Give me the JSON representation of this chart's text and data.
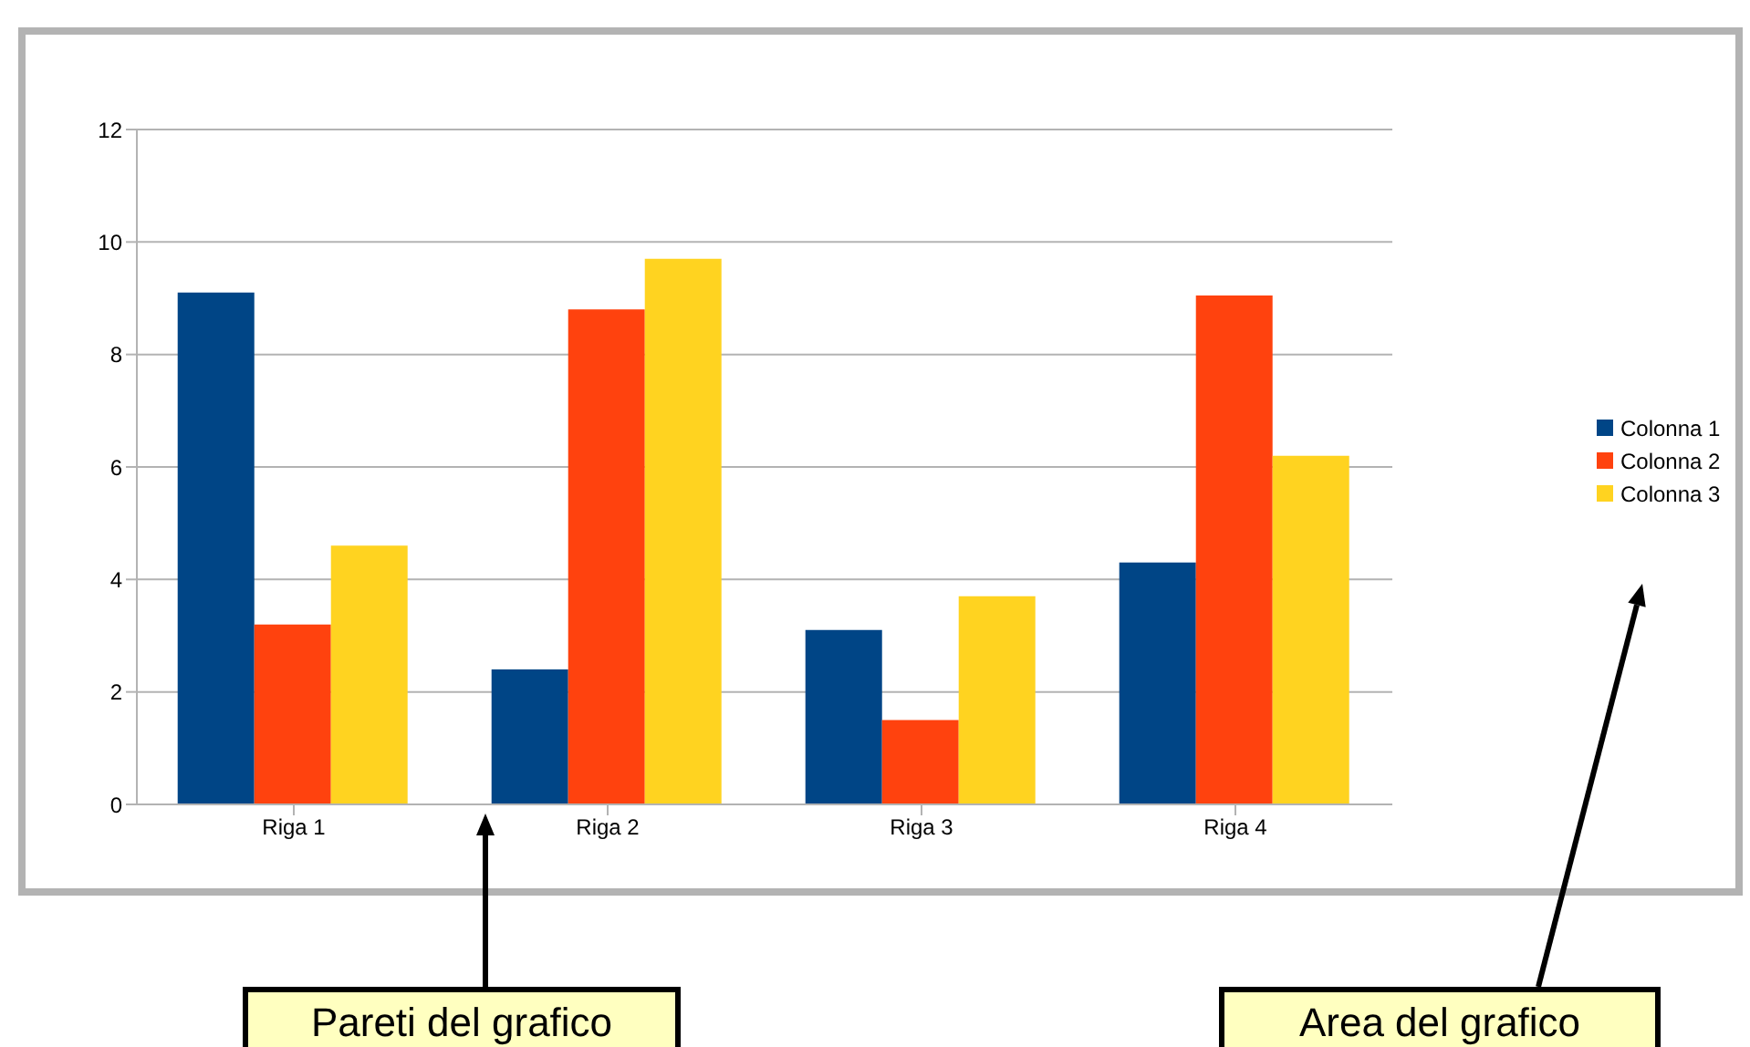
{
  "chart_data": {
    "type": "bar",
    "categories": [
      "Riga 1",
      "Riga 2",
      "Riga 3",
      "Riga 4"
    ],
    "series": [
      {
        "name": "Colonna 1",
        "color": "#004586",
        "values": [
          9.1,
          2.4,
          3.1,
          4.3
        ]
      },
      {
        "name": "Colonna 2",
        "color": "#ff420e",
        "values": [
          3.2,
          8.8,
          1.5,
          9.05
        ]
      },
      {
        "name": "Colonna 3",
        "color": "#ffd320",
        "values": [
          4.6,
          9.7,
          3.7,
          6.2
        ]
      }
    ],
    "ylim": [
      0,
      12
    ],
    "yticks": [
      0,
      2,
      4,
      6,
      8,
      10,
      12
    ],
    "grid": "y",
    "legend": "right",
    "annotations": [
      "Pareti del grafico",
      "Area del grafico"
    ]
  }
}
